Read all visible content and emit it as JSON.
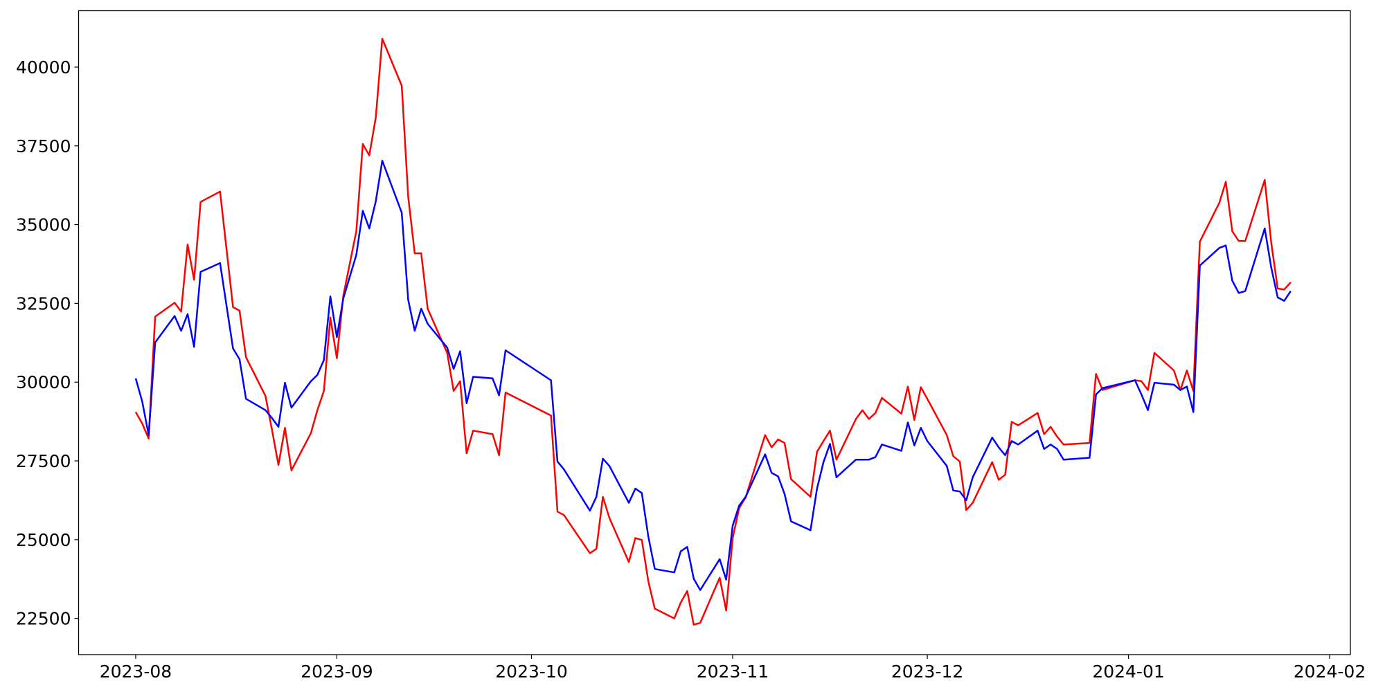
{
  "chart_data": {
    "type": "line",
    "x": [
      19570,
      19571,
      19572,
      19573,
      19576,
      19577,
      19578,
      19579,
      19580,
      19583,
      19585,
      19586,
      19587,
      19590,
      19591,
      19592,
      19593,
      19594,
      19597,
      19598,
      19599,
      19600,
      19601,
      19602,
      19604,
      19605,
      19606,
      19607,
      19608,
      19611,
      19612,
      19613,
      19614,
      19615,
      19618,
      19619,
      19620,
      19621,
      19622,
      19625,
      19626,
      19627,
      19634,
      19635,
      19636,
      19640,
      19641,
      19642,
      19643,
      19646,
      19647,
      19648,
      19649,
      19650,
      19653,
      19654,
      19655,
      19656,
      19657,
      19660,
      19661,
      19662,
      19663,
      19664,
      19667,
      19668,
      19669,
      19670,
      19671,
      19674,
      19675,
      19676,
      19677,
      19678,
      19681,
      19682,
      19683,
      19684,
      19685,
      19688,
      19689,
      19690,
      19691,
      19692,
      19695,
      19696,
      19697,
      19698,
      19699,
      19702,
      19703,
      19704,
      19705,
      19706,
      19709,
      19710,
      19711,
      19712,
      19713,
      19717,
      19718,
      19719,
      19724,
      19725,
      19726,
      19727,
      19730,
      19731,
      19732,
      19733,
      19734,
      19737,
      19738,
      19739,
      19740,
      19741,
      19744,
      19745,
      19746,
      19747,
      19748
    ],
    "series": [
      {
        "color": "#ff0000",
        "values": [
          29050,
          28690,
          28210,
          32080,
          32520,
          32240,
          34370,
          33250,
          35720,
          36050,
          32380,
          32270,
          30790,
          29560,
          28490,
          27370,
          28550,
          27200,
          28380,
          29110,
          29720,
          32050,
          30760,
          32750,
          34790,
          37560,
          37200,
          38400,
          40900,
          39410,
          35880,
          34090,
          34090,
          32330,
          30930,
          29720,
          30030,
          27740,
          28460,
          28350,
          27680,
          29670,
          28940,
          25890,
          25780,
          24570,
          24710,
          26360,
          25690,
          24290,
          25050,
          24990,
          23680,
          22810,
          22500,
          23000,
          23370,
          22300,
          22360,
          23790,
          22750,
          25050,
          26000,
          26340,
          28320,
          27930,
          28180,
          28070,
          26920,
          26360,
          27790,
          28130,
          28460,
          27540,
          28830,
          29110,
          28830,
          29020,
          29500,
          29000,
          29860,
          28800,
          29840,
          29470,
          28320,
          27650,
          27480,
          25940,
          26170,
          27460,
          26900,
          27060,
          28740,
          28630,
          29020,
          28350,
          28580,
          28270,
          28020,
          28070,
          30260,
          29750,
          30060,
          30030,
          29750,
          30930,
          30370,
          29750,
          30370,
          29720,
          34460,
          35690,
          36360,
          34790,
          34480,
          34480,
          36420,
          34430,
          32970,
          32940,
          33170
        ]
      },
      {
        "color": "#0000ff",
        "values": [
          30120,
          29390,
          28320,
          31260,
          32100,
          31630,
          32160,
          31120,
          33500,
          33780,
          31070,
          30730,
          29470,
          29110,
          28860,
          28580,
          29980,
          29190,
          30030,
          30230,
          30700,
          32720,
          31430,
          32660,
          34040,
          35440,
          34880,
          35740,
          37030,
          35380,
          32610,
          31630,
          32330,
          31850,
          31100,
          30420,
          30980,
          29330,
          30170,
          30120,
          29580,
          31010,
          30060,
          27480,
          27230,
          25920,
          26360,
          27570,
          27340,
          26170,
          26620,
          26480,
          25100,
          24070,
          23960,
          24630,
          24770,
          23760,
          23400,
          24380,
          23730,
          25440,
          26080,
          26360,
          27710,
          27120,
          27010,
          26450,
          25580,
          25300,
          26620,
          27460,
          28040,
          26980,
          27540,
          27540,
          27540,
          27620,
          28020,
          27820,
          28720,
          27990,
          28550,
          28130,
          27340,
          26560,
          26530,
          26250,
          26980,
          28240,
          27930,
          27680,
          28130,
          28020,
          28460,
          27880,
          28020,
          27880,
          27540,
          27600,
          29610,
          29810,
          30060,
          29610,
          29110,
          29980,
          29920,
          29750,
          29860,
          29050,
          33700,
          34260,
          34340,
          33220,
          32830,
          32890,
          34880,
          33640,
          32690,
          32580,
          32890
        ]
      }
    ],
    "xlim": [
      19561.2,
      19757.2
    ],
    "xticks": [
      {
        "value": 19570,
        "label": "2023-08"
      },
      {
        "value": 19601,
        "label": "2023-09"
      },
      {
        "value": 19631,
        "label": "2023-10"
      },
      {
        "value": 19662,
        "label": "2023-11"
      },
      {
        "value": 19692,
        "label": "2023-12"
      },
      {
        "value": 19723,
        "label": "2024-01"
      },
      {
        "value": 19754,
        "label": "2024-02"
      }
    ],
    "ylim": [
      21350,
      41790
    ],
    "yticks": [
      22500,
      25000,
      27500,
      30000,
      32500,
      35000,
      37500,
      40000
    ],
    "grid": false
  }
}
